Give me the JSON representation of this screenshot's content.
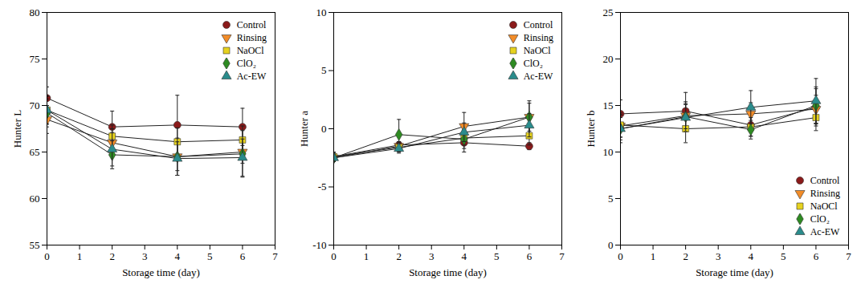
{
  "chart_data": [
    {
      "type": "line",
      "xlabel": "Storage time (day)",
      "ylabel": "Hunter L",
      "x": [
        0,
        2,
        4,
        6
      ],
      "xlim": [
        0,
        7
      ],
      "xticks": [
        0,
        1,
        2,
        3,
        4,
        5,
        6,
        7
      ],
      "ylim": [
        55,
        80
      ],
      "yticks": [
        55,
        60,
        65,
        70,
        75,
        80
      ],
      "grid": false,
      "legend": "upper right",
      "series": [
        {
          "name": "Control",
          "color": "#8b1a1a",
          "marker": "circle",
          "values": [
            70.8,
            67.7,
            67.9,
            67.7
          ],
          "errors": [
            1.2,
            1.7,
            3.2,
            2.0
          ]
        },
        {
          "name": "Rinsing",
          "color": "#f28c28",
          "marker": "triangle-down",
          "values": [
            68.5,
            66.0,
            64.5,
            65.0
          ],
          "errors": [
            1.5,
            1.5,
            1.5,
            1.2
          ]
        },
        {
          "name": "NaOCl",
          "color": "#e6d21f",
          "marker": "square",
          "values": [
            69.5,
            66.7,
            66.1,
            66.3
          ],
          "errors": [
            1.5,
            1.2,
            1.5,
            1.5
          ]
        },
        {
          "name": "ClO₂",
          "color": "#2e8b22",
          "marker": "diamond",
          "values": [
            69.2,
            64.7,
            64.5,
            64.8
          ],
          "errors": [
            1.5,
            1.5,
            2.0,
            2.5
          ]
        },
        {
          "name": "Ac-EW",
          "color": "#2a8c8c",
          "marker": "triangle",
          "values": [
            69.5,
            65.3,
            64.3,
            64.4
          ],
          "errors": [
            1.5,
            1.8,
            1.8,
            2.0
          ]
        }
      ]
    },
    {
      "type": "line",
      "xlabel": "Storage time (day)",
      "ylabel": "Hunter a",
      "x": [
        0,
        2,
        4,
        6
      ],
      "xlim": [
        0,
        7
      ],
      "xticks": [
        0,
        1,
        2,
        3,
        4,
        5,
        6,
        7
      ],
      "ylim": [
        -10,
        10
      ],
      "yticks": [
        -10,
        -5,
        0,
        5,
        10
      ],
      "grid": false,
      "legend": "upper right",
      "series": [
        {
          "name": "Control",
          "color": "#8b1a1a",
          "marker": "circle",
          "values": [
            -2.4,
            -1.4,
            -1.2,
            -1.5
          ],
          "errors": [
            0.4,
            0.3,
            0.8,
            0.3
          ]
        },
        {
          "name": "Rinsing",
          "color": "#f28c28",
          "marker": "triangle-down",
          "values": [
            -2.5,
            -1.5,
            0.2,
            1.0
          ],
          "errors": [
            0.3,
            0.4,
            1.2,
            1.4
          ]
        },
        {
          "name": "NaOCl",
          "color": "#e6d21f",
          "marker": "square",
          "values": [
            -2.4,
            -1.6,
            -0.8,
            -0.6
          ],
          "errors": [
            0.3,
            0.4,
            0.6,
            0.8
          ]
        },
        {
          "name": "ClO₂",
          "color": "#2e8b22",
          "marker": "diamond",
          "values": [
            -2.5,
            -0.5,
            -0.9,
            1.0
          ],
          "errors": [
            0.3,
            1.3,
            0.8,
            1.2
          ]
        },
        {
          "name": "Ac-EW",
          "color": "#2a8c8c",
          "marker": "triangle",
          "values": [
            -2.5,
            -1.7,
            -0.3,
            0.3
          ],
          "errors": [
            0.3,
            0.4,
            0.8,
            1.0
          ]
        }
      ]
    },
    {
      "type": "line",
      "xlabel": "Storage time (day)",
      "ylabel": "Hunter b",
      "x": [
        0,
        2,
        4,
        6
      ],
      "xlim": [
        0,
        7
      ],
      "xticks": [
        0,
        1,
        2,
        3,
        4,
        5,
        6,
        7
      ],
      "ylim": [
        0,
        25
      ],
      "yticks": [
        0,
        5,
        10,
        15,
        20,
        25
      ],
      "grid": false,
      "legend": "lower right",
      "series": [
        {
          "name": "Control",
          "color": "#8b1a1a",
          "marker": "circle",
          "values": [
            14.1,
            14.4,
            12.9,
            14.8
          ],
          "errors": [
            1.5,
            2.0,
            1.2,
            2.0
          ]
        },
        {
          "name": "Rinsing",
          "color": "#f28c28",
          "marker": "triangle-down",
          "values": [
            12.8,
            13.9,
            14.1,
            14.6
          ],
          "errors": [
            1.2,
            1.5,
            1.2,
            1.5
          ]
        },
        {
          "name": "NaOCl",
          "color": "#e6d21f",
          "marker": "square",
          "values": [
            12.9,
            12.5,
            12.7,
            13.7
          ],
          "errors": [
            1.3,
            1.5,
            1.0,
            1.4
          ]
        },
        {
          "name": "ClO₂",
          "color": "#2e8b22",
          "marker": "diamond",
          "values": [
            12.5,
            13.8,
            12.4,
            15.0
          ],
          "errors": [
            1.2,
            1.3,
            1.0,
            2.0
          ]
        },
        {
          "name": "Ac-EW",
          "color": "#2a8c8c",
          "marker": "triangle",
          "values": [
            12.5,
            13.7,
            14.8,
            15.5
          ],
          "errors": [
            1.5,
            1.5,
            1.8,
            2.4
          ]
        }
      ]
    }
  ]
}
